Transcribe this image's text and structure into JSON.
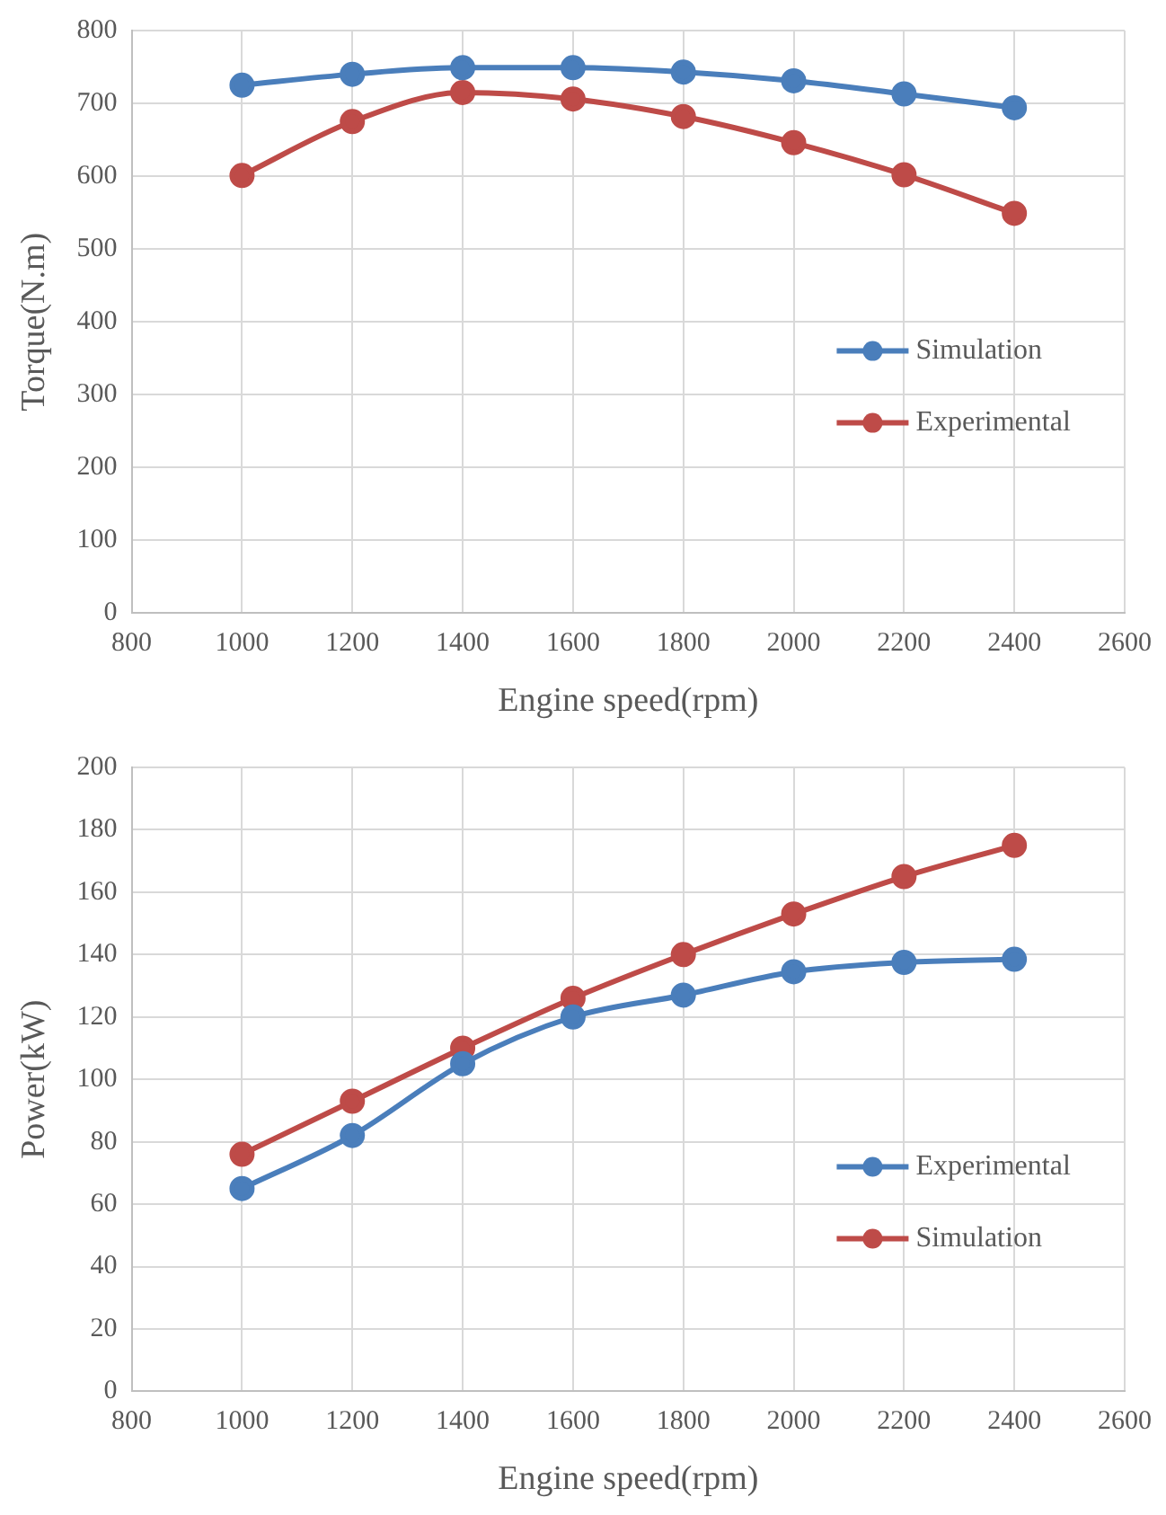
{
  "chart_data": [
    {
      "type": "line",
      "xlabel": "Engine speed(rpm)",
      "ylabel": "Torque(N.m)",
      "x": [
        1000,
        1200,
        1400,
        1600,
        1800,
        2000,
        2200,
        2400
      ],
      "series": [
        {
          "name": "Simulation",
          "color": "#4a7ebb",
          "values": [
            725,
            740,
            749,
            749,
            743,
            731,
            713,
            694
          ]
        },
        {
          "name": "Experimental",
          "color": "#be4b48",
          "values": [
            601,
            675,
            715,
            706,
            682,
            646,
            602,
            549
          ]
        }
      ],
      "xlim": [
        800,
        2600
      ],
      "xticks": [
        800,
        1000,
        1200,
        1400,
        1600,
        1800,
        2000,
        2200,
        2400,
        2600
      ],
      "ylim": [
        0,
        800
      ],
      "yticks": [
        0,
        100,
        200,
        300,
        400,
        500,
        600,
        700,
        800
      ],
      "grid": true,
      "legend": "right",
      "marker": "circle",
      "line_style": "solid"
    },
    {
      "type": "line",
      "xlabel": "Engine speed(rpm)",
      "ylabel": "Power(kW)",
      "x": [
        1000,
        1200,
        1400,
        1600,
        1800,
        2000,
        2200,
        2400
      ],
      "series": [
        {
          "name": "Experimental",
          "color": "#4a7ebb",
          "values": [
            65,
            82,
            105,
            120,
            127,
            134.5,
            137.5,
            138.5
          ]
        },
        {
          "name": "Simulation",
          "color": "#be4b48",
          "values": [
            76,
            93,
            110,
            126,
            140,
            153,
            165,
            175
          ]
        }
      ],
      "xlim": [
        800,
        2600
      ],
      "xticks": [
        800,
        1000,
        1200,
        1400,
        1600,
        1800,
        2000,
        2200,
        2400,
        2600
      ],
      "ylim": [
        0,
        200
      ],
      "yticks": [
        0,
        20,
        40,
        60,
        80,
        100,
        120,
        140,
        160,
        180,
        200
      ],
      "grid": true,
      "legend": "bottom right",
      "marker": "circle",
      "line_style": "solid"
    }
  ]
}
